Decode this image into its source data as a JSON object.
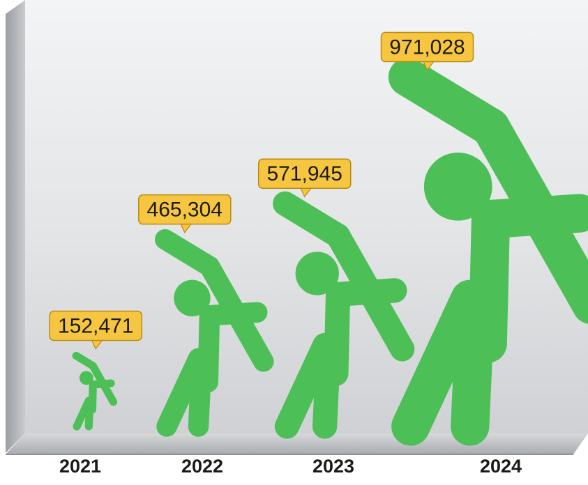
{
  "colors": {
    "figure": "#4cbf57",
    "label_bg": "#f7c640",
    "label_border": "#b88a12",
    "panel_light": "#f2f3f4",
    "panel_dark": "#c6c8cb"
  },
  "chart_data": {
    "type": "bar",
    "title": "",
    "xlabel": "",
    "ylabel": "",
    "categories": [
      "2021",
      "2022",
      "2023",
      "2024"
    ],
    "values": [
      152471,
      465304,
      571945,
      971028
    ],
    "value_labels": [
      "152,471",
      "465,304",
      "571,945",
      "971,028"
    ],
    "marker_icon": "golfer-icon",
    "grid": false,
    "legend": "none"
  }
}
